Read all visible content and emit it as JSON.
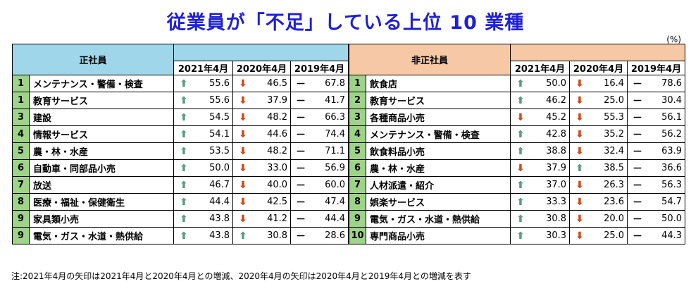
{
  "title": "従業員が「不足」している上位 10 業種",
  "unit": "(%)",
  "note": "注:2021年4月の矢印は2021年4月と2020年4月との増減、2020年4月の矢印は2020年4月と2019年4月との増減を表す",
  "years": [
    "2021年4月",
    "2020年4月",
    "2019年4月"
  ],
  "left": {
    "header": "正社員",
    "rows": [
      {
        "rank": "1",
        "name": "メンテナンス・警備・検査",
        "v2021": "55.6",
        "a2021": "up",
        "v2020": "46.5",
        "a2020": "down",
        "v2019": "67.8"
      },
      {
        "rank": "1",
        "name": "教育サービス",
        "v2021": "55.6",
        "a2021": "up",
        "v2020": "37.9",
        "a2020": "down",
        "v2019": "41.7"
      },
      {
        "rank": "3",
        "name": "建設",
        "v2021": "54.5",
        "a2021": "up",
        "v2020": "48.2",
        "a2020": "down",
        "v2019": "66.3"
      },
      {
        "rank": "4",
        "name": "情報サービス",
        "v2021": "54.1",
        "a2021": "up",
        "v2020": "44.6",
        "a2020": "down",
        "v2019": "74.4"
      },
      {
        "rank": "5",
        "name": "農・林・水産",
        "v2021": "53.5",
        "a2021": "up",
        "v2020": "48.2",
        "a2020": "down",
        "v2019": "71.1"
      },
      {
        "rank": "6",
        "name": "自動車・同部品小売",
        "v2021": "50.0",
        "a2021": "up",
        "v2020": "33.0",
        "a2020": "down",
        "v2019": "56.9"
      },
      {
        "rank": "7",
        "name": "放送",
        "v2021": "46.7",
        "a2021": "up",
        "v2020": "40.0",
        "a2020": "down",
        "v2019": "60.0"
      },
      {
        "rank": "8",
        "name": "医療・福祉・保健衛生",
        "v2021": "44.4",
        "a2021": "up",
        "v2020": "42.5",
        "a2020": "down",
        "v2019": "47.4"
      },
      {
        "rank": "9",
        "name": "家具類小売",
        "v2021": "43.8",
        "a2021": "up",
        "v2020": "41.2",
        "a2020": "down",
        "v2019": "44.4"
      },
      {
        "rank": "9",
        "name": "電気・ガス・水道・熱供給",
        "v2021": "43.8",
        "a2021": "up",
        "v2020": "30.8",
        "a2020": "up",
        "v2019": "28.6"
      }
    ]
  },
  "right": {
    "header": "非正社員",
    "rows": [
      {
        "rank": "1",
        "name": "飲食店",
        "v2021": "50.0",
        "a2021": "up",
        "v2020": "16.4",
        "a2020": "down",
        "v2019": "78.6"
      },
      {
        "rank": "2",
        "name": "教育サービス",
        "v2021": "46.2",
        "a2021": "up",
        "v2020": "25.0",
        "a2020": "down",
        "v2019": "30.4"
      },
      {
        "rank": "3",
        "name": "各種商品小売",
        "v2021": "45.2",
        "a2021": "down",
        "v2020": "55.3",
        "a2020": "down",
        "v2019": "56.1"
      },
      {
        "rank": "4",
        "name": "メンテナンス・警備・検査",
        "v2021": "42.8",
        "a2021": "up",
        "v2020": "35.2",
        "a2020": "down",
        "v2019": "56.2"
      },
      {
        "rank": "5",
        "name": "飲食料品小売",
        "v2021": "38.8",
        "a2021": "up",
        "v2020": "32.4",
        "a2020": "down",
        "v2019": "63.9"
      },
      {
        "rank": "6",
        "name": "農・林・水産",
        "v2021": "37.9",
        "a2021": "down",
        "v2020": "38.5",
        "a2020": "up",
        "v2019": "36.6"
      },
      {
        "rank": "7",
        "name": "人材派遣・紹介",
        "v2021": "37.0",
        "a2021": "up",
        "v2020": "26.3",
        "a2020": "down",
        "v2019": "56.3"
      },
      {
        "rank": "8",
        "name": "娯楽サービス",
        "v2021": "33.3",
        "a2021": "up",
        "v2020": "23.6",
        "a2020": "down",
        "v2019": "54.7"
      },
      {
        "rank": "9",
        "name": "電気・ガス・水道・熱供給",
        "v2021": "30.8",
        "a2021": "up",
        "v2020": "20.0",
        "a2020": "down",
        "v2019": "50.0"
      },
      {
        "rank": "10",
        "name": "専門商品小売",
        "v2021": "30.3",
        "a2021": "up",
        "v2020": "25.0",
        "a2020": "down",
        "v2019": "44.3"
      }
    ]
  }
}
